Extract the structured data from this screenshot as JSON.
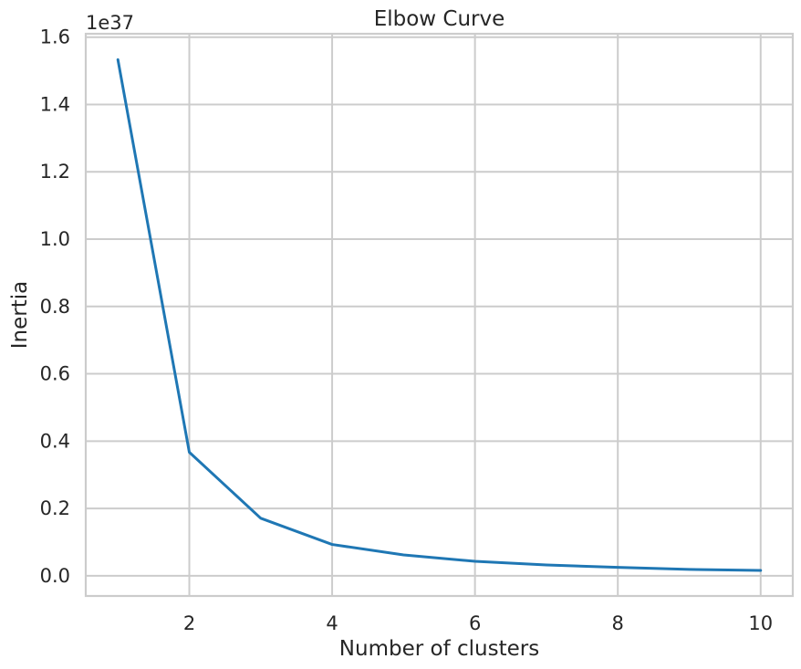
{
  "chart_data": {
    "type": "line",
    "title": "Elbow Curve",
    "xlabel": "Number of clusters",
    "ylabel": "Inertia",
    "y_offset_label": "1e37",
    "x_ticks": [
      "2",
      "4",
      "6",
      "8",
      "10"
    ],
    "x_tick_values": [
      2,
      4,
      6,
      8,
      10
    ],
    "y_ticks": [
      "0.0",
      "0.2",
      "0.4",
      "0.6",
      "0.8",
      "1.0",
      "1.2",
      "1.4",
      "1.6"
    ],
    "y_tick_values": [
      0.0,
      0.2,
      0.4,
      0.6,
      0.8,
      1.0,
      1.2,
      1.4,
      1.6
    ],
    "xlim": [
      0.55,
      10.45
    ],
    "ylim": [
      -0.06,
      1.61
    ],
    "grid": true,
    "legend": "none",
    "series": [
      {
        "color": "#1f77b4",
        "x": [
          1,
          2,
          3,
          4,
          5,
          6,
          7,
          8,
          9,
          10
        ],
        "y": [
          1.533,
          0.367,
          0.171,
          0.093,
          0.062,
          0.043,
          0.032,
          0.025,
          0.019,
          0.016
        ]
      }
    ]
  }
}
